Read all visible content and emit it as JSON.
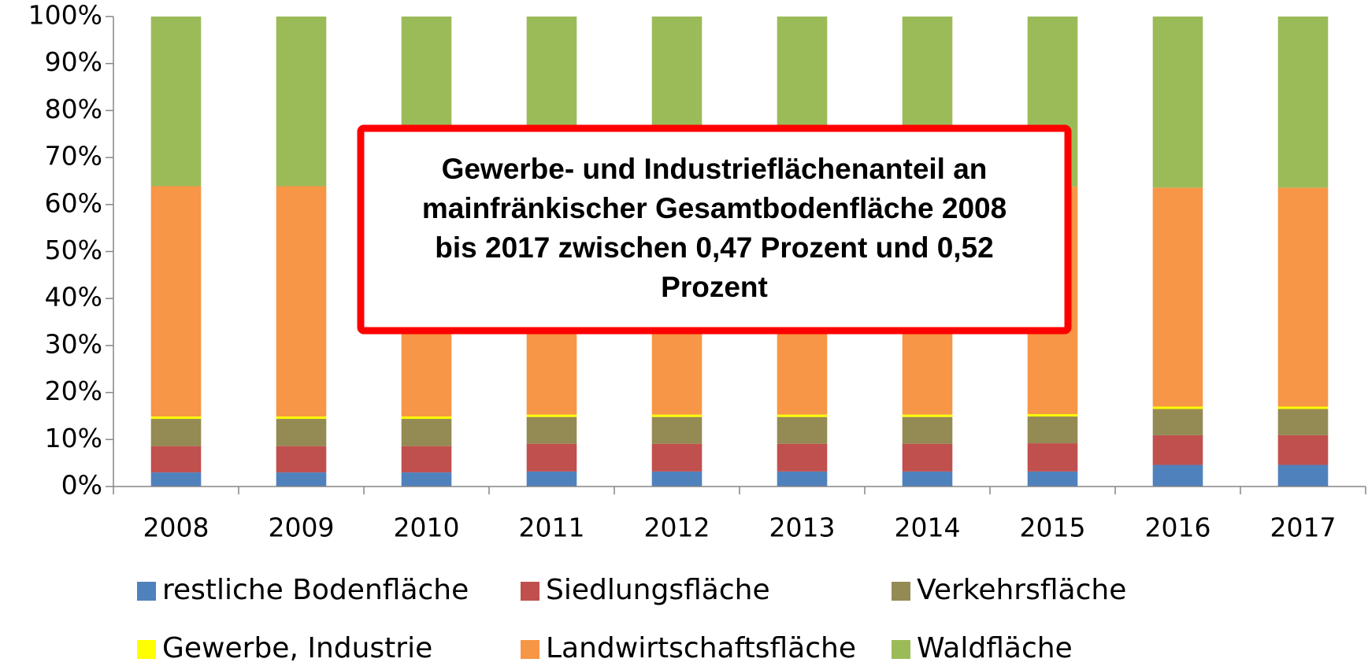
{
  "chart_data": {
    "type": "stacked_bar",
    "categories": [
      "2008",
      "2009",
      "2010",
      "2011",
      "2012",
      "2013",
      "2014",
      "2015",
      "2016",
      "2017"
    ],
    "series": [
      {
        "name": "restliche Bodenfläche",
        "color": "#4f81bd",
        "values": [
          3.0,
          3.0,
          3.0,
          3.2,
          3.2,
          3.2,
          3.2,
          3.2,
          4.6,
          4.6
        ]
      },
      {
        "name": "Siedlungsfläche",
        "color": "#c0504d",
        "values": [
          5.6,
          5.6,
          5.6,
          5.9,
          5.9,
          5.9,
          5.9,
          6.0,
          6.3,
          6.3
        ]
      },
      {
        "name": "Verkehrsfläche",
        "color": "#948a54",
        "values": [
          5.8,
          5.8,
          5.8,
          5.7,
          5.7,
          5.7,
          5.7,
          5.7,
          5.6,
          5.6
        ]
      },
      {
        "name": "Gewerbe, Industrie",
        "color": "#ffff00",
        "values": [
          0.5,
          0.5,
          0.5,
          0.5,
          0.5,
          0.5,
          0.5,
          0.5,
          0.5,
          0.5
        ]
      },
      {
        "name": "Landwirtschaftsfläche",
        "color": "#f79646",
        "values": [
          49.0,
          49.0,
          49.0,
          48.5,
          48.5,
          48.5,
          48.5,
          48.4,
          46.6,
          46.6
        ]
      },
      {
        "name": "Waldfläche",
        "color": "#9bbb59",
        "values": [
          36.1,
          36.1,
          36.1,
          36.2,
          36.2,
          36.2,
          36.2,
          36.2,
          36.4,
          36.4
        ]
      }
    ],
    "ylim": [
      0,
      100
    ],
    "yticks": [
      {
        "value": 0,
        "label": "0%"
      },
      {
        "value": 10,
        "label": "10%"
      },
      {
        "value": 20,
        "label": "20%"
      },
      {
        "value": 30,
        "label": "30%"
      },
      {
        "value": 40,
        "label": "40%"
      },
      {
        "value": 50,
        "label": "50%"
      },
      {
        "value": 60,
        "label": "60%"
      },
      {
        "value": 70,
        "label": "70%"
      },
      {
        "value": 80,
        "label": "80%"
      },
      {
        "value": 90,
        "label": "90%"
      },
      {
        "value": 100,
        "label": "100%"
      }
    ],
    "legend": "bottom",
    "annotation": [
      "Gewerbe- und Industrieflächenanteil an",
      "mainfränkischer Gesamtbodenfläche 2008",
      "bis 2017 zwischen 0,47 Prozent und 0,52",
      "Prozent"
    ]
  }
}
